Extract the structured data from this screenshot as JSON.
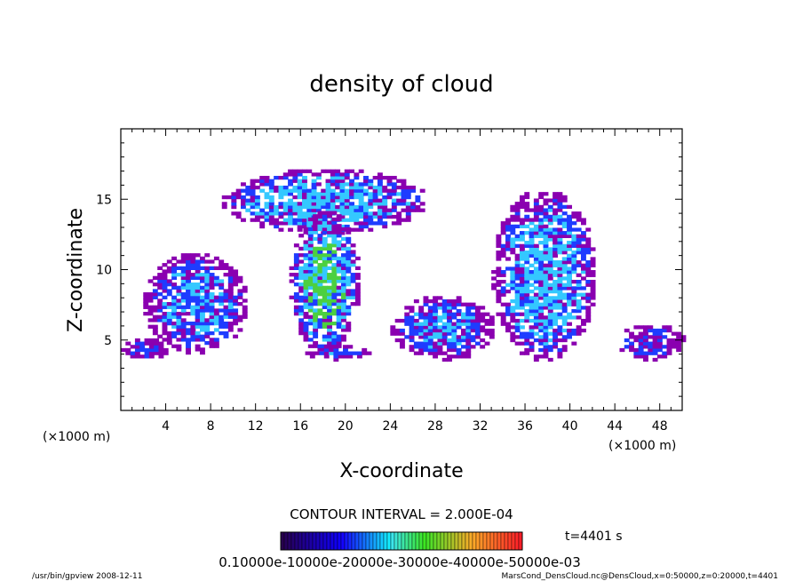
{
  "chart_data": {
    "type": "heatmap",
    "title": "density of cloud",
    "xlabel": "X-coordinate",
    "ylabel": "Z-coordinate",
    "x_unit": "(×1000 m)",
    "y_unit": "(×1000 m)",
    "xlim": [
      0,
      50
    ],
    "ylim": [
      0,
      20
    ],
    "x_ticks": [
      4,
      8,
      12,
      16,
      20,
      24,
      28,
      32,
      36,
      40,
      44,
      48
    ],
    "y_ticks": [
      5,
      10,
      15
    ],
    "contour_interval_text": "CONTOUR INTERVAL = 2.000E-04",
    "time_text": "t=4401 s",
    "colorbar_labels_text": "0.10000e-10000e-20000e-30000e-40000e-50000e-03",
    "footer_left": "/usr/bin/gpview   2008-12-11",
    "footer_right": "MarsCond_DensCloud.nc@DensCloud,x=0:50000,z=0:20000,t=4401",
    "colors": {
      "low": "#8a00b0",
      "mid": "#1e3cff",
      "high": "#34c8ff",
      "peak": "#4cd040"
    },
    "regions": [
      {
        "name": "left-cloud",
        "x": [
          0,
          4
        ],
        "z": [
          3.5,
          5
        ],
        "level": 0
      },
      {
        "name": "left-tower",
        "x": [
          2,
          11
        ],
        "z": [
          4,
          11
        ],
        "level": 1
      },
      {
        "name": "central-anvil",
        "x": [
          9,
          27
        ],
        "z": [
          12.5,
          17
        ],
        "level": 2
      },
      {
        "name": "central-column",
        "x": [
          15,
          21
        ],
        "z": [
          4,
          14
        ],
        "level": 3
      },
      {
        "name": "base-patch",
        "x": [
          16,
          22
        ],
        "z": [
          3.5,
          4.5
        ],
        "level": 0
      },
      {
        "name": "mid-cloud",
        "x": [
          24,
          33
        ],
        "z": [
          3.5,
          8
        ],
        "level": 1
      },
      {
        "name": "right-tower",
        "x": [
          33,
          42
        ],
        "z": [
          3.5,
          15.5
        ],
        "level": 2
      },
      {
        "name": "right-cloud",
        "x": [
          44,
          50
        ],
        "z": [
          3.5,
          6
        ],
        "level": 0
      }
    ]
  }
}
